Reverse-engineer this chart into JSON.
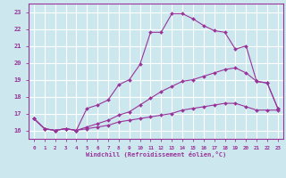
{
  "xlabel": "Windchill (Refroidissement éolien,°C)",
  "background_color": "#cce8ee",
  "grid_color": "#ffffff",
  "line_color": "#993399",
  "xlim": [
    -0.5,
    23.5
  ],
  "ylim": [
    15.5,
    23.5
  ],
  "xticks": [
    0,
    1,
    2,
    3,
    4,
    5,
    6,
    7,
    8,
    9,
    10,
    11,
    12,
    13,
    14,
    15,
    16,
    17,
    18,
    19,
    20,
    21,
    22,
    23
  ],
  "yticks": [
    16,
    17,
    18,
    19,
    20,
    21,
    22,
    23
  ],
  "curve1_x": [
    0,
    1,
    2,
    3,
    4,
    5,
    6,
    7,
    8,
    9,
    10,
    11,
    12,
    13,
    14,
    15,
    16,
    17,
    18,
    19,
    20,
    21,
    22,
    23
  ],
  "curve1_y": [
    16.7,
    16.1,
    16.0,
    16.1,
    16.0,
    17.3,
    17.5,
    17.8,
    18.7,
    19.0,
    19.9,
    21.8,
    21.8,
    22.9,
    22.9,
    22.6,
    22.2,
    21.9,
    21.8,
    20.8,
    21.0,
    18.9,
    18.8,
    17.3
  ],
  "curve2_x": [
    0,
    1,
    2,
    3,
    4,
    5,
    6,
    7,
    8,
    9,
    10,
    11,
    12,
    13,
    14,
    15,
    16,
    17,
    18,
    19,
    20,
    21,
    22,
    23
  ],
  "curve2_y": [
    16.7,
    16.1,
    16.0,
    16.1,
    16.0,
    16.2,
    16.4,
    16.6,
    16.9,
    17.1,
    17.5,
    17.9,
    18.3,
    18.6,
    18.9,
    19.0,
    19.2,
    19.4,
    19.6,
    19.7,
    19.4,
    18.9,
    18.8,
    17.3
  ],
  "curve3_x": [
    0,
    1,
    2,
    3,
    4,
    5,
    6,
    7,
    8,
    9,
    10,
    11,
    12,
    13,
    14,
    15,
    16,
    17,
    18,
    19,
    20,
    21,
    22,
    23
  ],
  "curve3_y": [
    16.7,
    16.1,
    16.0,
    16.1,
    16.0,
    16.1,
    16.2,
    16.3,
    16.5,
    16.6,
    16.7,
    16.8,
    16.9,
    17.0,
    17.2,
    17.3,
    17.4,
    17.5,
    17.6,
    17.6,
    17.4,
    17.2,
    17.2,
    17.2
  ]
}
